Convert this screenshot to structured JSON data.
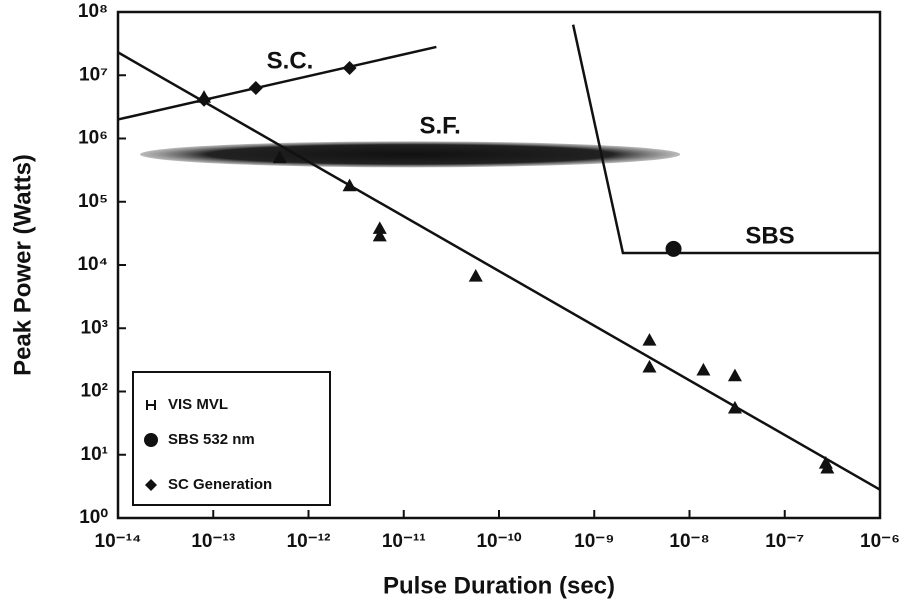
{
  "chart_data": {
    "type": "scatter",
    "xlabel": "Pulse Duration (sec)",
    "ylabel": "Peak Power (Watts)",
    "xscale": "log",
    "yscale": "log",
    "xlim": [
      1e-14,
      1e-06
    ],
    "ylim": [
      1,
      100000000.0
    ],
    "xticks": [
      {
        "value": 1e-14,
        "label": "10⁻¹⁴"
      },
      {
        "value": 1e-13,
        "label": "10⁻¹³"
      },
      {
        "value": 1e-12,
        "label": "10⁻¹²"
      },
      {
        "value": 1e-11,
        "label": "10⁻¹¹"
      },
      {
        "value": 1e-10,
        "label": "10⁻¹⁰"
      },
      {
        "value": 1e-09,
        "label": "10⁻⁹"
      },
      {
        "value": 1e-08,
        "label": "10⁻⁸"
      },
      {
        "value": 1e-07,
        "label": "10⁻⁷"
      },
      {
        "value": 1e-06,
        "label": "10⁻⁶"
      }
    ],
    "yticks": [
      {
        "value": 1,
        "label": "10⁰"
      },
      {
        "value": 10,
        "label": "10¹"
      },
      {
        "value": 100,
        "label": "10²"
      },
      {
        "value": 1000,
        "label": "10³"
      },
      {
        "value": 10000,
        "label": "10⁴"
      },
      {
        "value": 100000,
        "label": "10⁵"
      },
      {
        "value": 1000000,
        "label": "10⁶"
      },
      {
        "value": 10000000,
        "label": "10⁷"
      },
      {
        "value": 100000000,
        "label": "10⁸"
      }
    ],
    "legend": "lower left",
    "series": [
      {
        "name": "VIS MVL",
        "marker": "triangle",
        "color": "#111",
        "x": [
          8e-14,
          5e-13,
          2.7e-12,
          5.6e-12,
          5.6e-12,
          5.7e-11,
          3.8e-09,
          3.8e-09,
          1.4e-08,
          3e-08,
          3e-08,
          2.7e-07,
          2.8e-07
        ],
        "values": [
          4500000,
          500000,
          180000,
          38000,
          29000,
          6700,
          650,
          245,
          220,
          178,
          55,
          7.4,
          6.2
        ]
      },
      {
        "name": "SBS 532 nm",
        "marker": "circle",
        "color": "#111",
        "x": [
          6.8e-09
        ],
        "values": [
          18000
        ]
      },
      {
        "name": "SC Generation",
        "marker": "diamond",
        "color": "#111",
        "x": [
          8e-14,
          2.8e-13,
          2.7e-12
        ],
        "values": [
          4100000,
          6300000,
          13000000
        ]
      }
    ],
    "lines": [
      {
        "label": "S.C.",
        "x": [
          1e-14,
          2.2e-11
        ],
        "values": [
          2000000,
          28000000
        ]
      },
      {
        "x": [
          1e-14,
          1e-06
        ],
        "values": [
          23000000,
          2.8
        ]
      },
      {
        "label": "SBS",
        "x": [
          6e-10,
          2e-09,
          1e-06
        ],
        "values": [
          63000000,
          15500,
          15500
        ]
      }
    ],
    "regions": [
      {
        "label": "S.F.",
        "xlim": [
          1.7e-14,
          8e-09
        ],
        "ylim": [
          350000,
          900000
        ]
      }
    ]
  }
}
